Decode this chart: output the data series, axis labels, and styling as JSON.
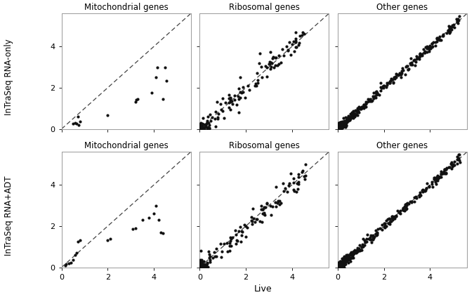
{
  "row_labels": [
    "InTraSeq RNA-only",
    "InTraSeq RNA+ADT"
  ],
  "col_labels": [
    "Mitochondrial genes",
    "Ribosomal genes",
    "Other genes"
  ],
  "xlabel": "Live",
  "point_color": "#111111",
  "point_size": 9,
  "dashed_color": "#444444",
  "background": "#ffffff",
  "panel_title_fontsize": 8.5,
  "axis_label_fontsize": 9,
  "tick_fontsize": 8,
  "row_label_fontsize": 8.5,
  "axis_ticks": [
    0,
    2,
    4
  ],
  "xlim": [
    0,
    5.6
  ],
  "ylim": [
    0,
    5.6
  ]
}
